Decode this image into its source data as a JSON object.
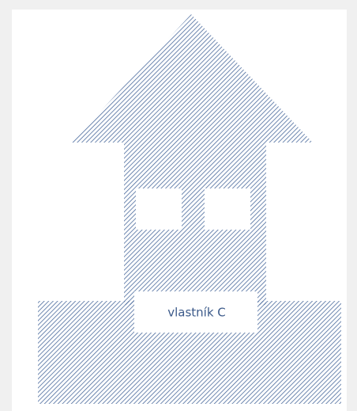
{
  "building": {
    "label": "vlastník C"
  }
}
